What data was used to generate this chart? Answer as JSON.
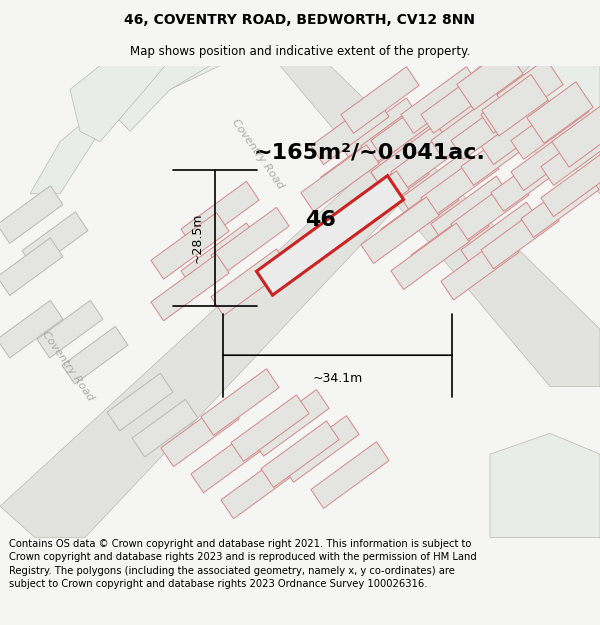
{
  "title_line1": "46, COVENTRY ROAD, BEDWORTH, CV12 8NN",
  "title_line2": "Map shows position and indicative extent of the property.",
  "area_label": "~165m²/~0.041ac.",
  "property_number": "46",
  "dim_width": "~34.1m",
  "dim_height": "~28.5m",
  "road_label1": "Coventry Road",
  "road_label2": "Coventry Road",
  "footer_text": "Contains OS data © Crown copyright and database right 2021. This information is subject to Crown copyright and database rights 2023 and is reproduced with the permission of HM Land Registry. The polygons (including the associated geometry, namely x, y co-ordinates) are subject to Crown copyright and database rights 2023 Ordnance Survey 100026316.",
  "bg_color": "#f5f5f3",
  "map_bg": "#f0f0ec",
  "road_fill": "#e2e2de",
  "green_fill": "#e8ede8",
  "plot_fill": "#e8e8e4",
  "plot_outline_red": "#cc2222",
  "neighbor_fill": "#e4e4e0",
  "neighbor_outline": "#d48888",
  "gray_outline": "#b8b8b4",
  "title_fontsize": 10,
  "subtitle_fontsize": 8.5,
  "footer_fontsize": 7.2,
  "area_fontsize": 16,
  "dim_fontsize": 9,
  "road_fontsize": 8,
  "num_fontsize": 16
}
